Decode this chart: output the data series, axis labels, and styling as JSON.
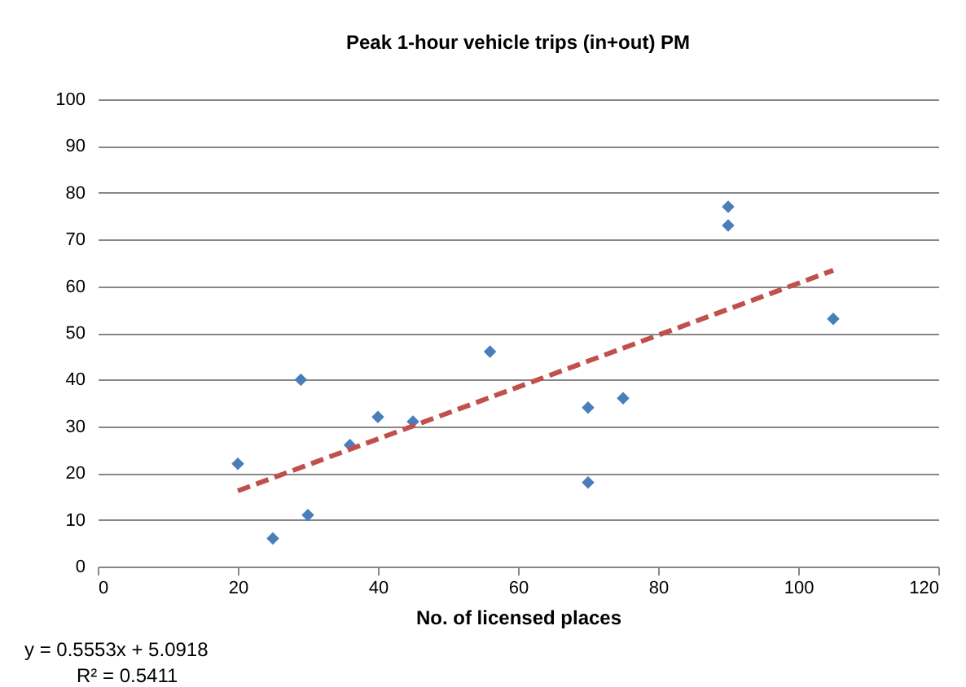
{
  "chart_data": {
    "type": "scatter",
    "title": "Peak 1-hour vehicle trips (in+out) PM",
    "xlabel": "No. of licensed places",
    "x": [
      20,
      25,
      29,
      30,
      36,
      40,
      45,
      56,
      70,
      70,
      75,
      90,
      90,
      105
    ],
    "series": [
      {
        "color": "#4a7ebb",
        "marker": "diamond",
        "values": [
          22,
          6,
          40,
          11,
          26,
          32,
          31,
          46,
          34,
          18,
          36,
          77,
          73,
          53
        ]
      },
      {
        "type": "line",
        "color": "#c0504d",
        "x": [
          20,
          105
        ],
        "values": [
          16.2,
          63.4
        ],
        "line_style": "dashed"
      }
    ],
    "xlim": [
      0,
      120
    ],
    "xticks": [
      0,
      20,
      40,
      60,
      80,
      100,
      120
    ],
    "ylim": [
      0,
      100
    ],
    "yticks": [
      0,
      10,
      20,
      30,
      40,
      50,
      60,
      70,
      80,
      90,
      100
    ],
    "grid": "y",
    "annotations": [
      "y = 0.5553x + 5.0918",
      "R² = 0.5411"
    ]
  }
}
